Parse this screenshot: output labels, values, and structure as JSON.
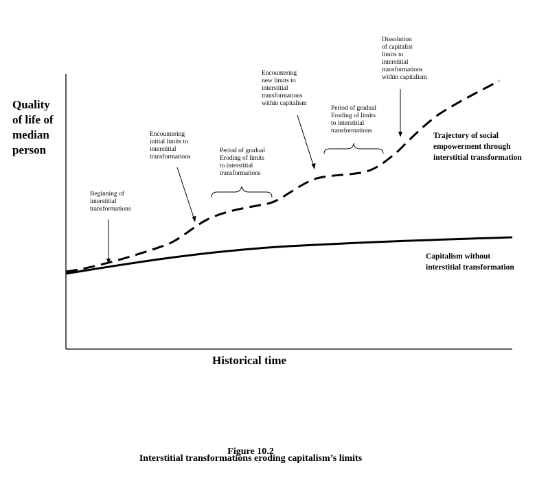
{
  "y_axis_label": "Quality\nof life of\nmedian\nperson",
  "x_axis_label": "Historical time",
  "series": {
    "dashed_label": "Trajectory of social\nempowerment through\ninterstitial transformation",
    "solid_label": "Capitalism without\ninterstitial transformation"
  },
  "annotations": {
    "beginning": "Beginning of\ninterstitial\ntransformations",
    "initial_limits": "Encountering\ninitial limits to\ninterstitial\ntransformations",
    "gradual_1": "Period of gradual\nEroding of limits\nto interstitial\ntransformations",
    "new_limits": "Encountering\nnew limits to\ninterstitial\ntransformations\nwithin capitalism",
    "gradual_2": "Period of gradual\nEroding of limits\nto interstitial\ntransformations",
    "dissolution": "Dissolution\nof capitalist\nlimits to\ninterstitial\ntransformations\nwithin capitalism"
  },
  "caption": {
    "number": "Figure 10.2",
    "title": "Interstitial transformations eroding capitalism’s limits"
  },
  "colors": {
    "ink": "#000000",
    "background": "#ffffff"
  }
}
